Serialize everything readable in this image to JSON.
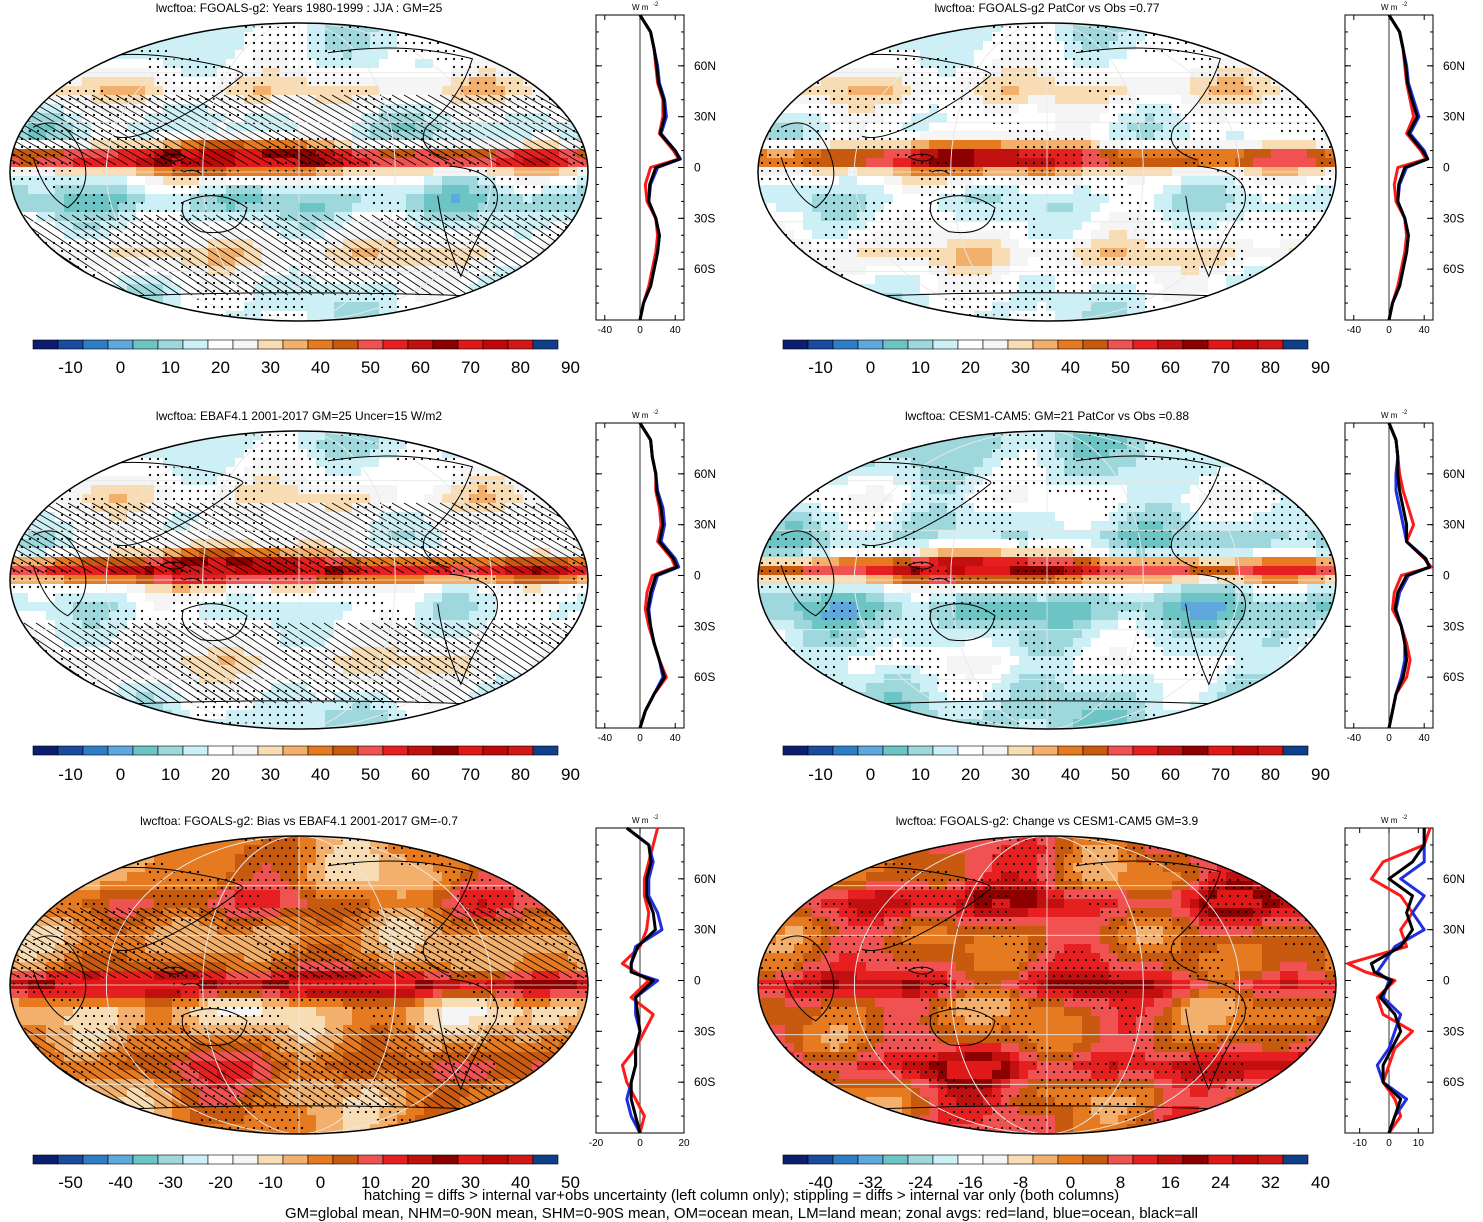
{
  "colors": {
    "full": [
      "#0b1f6e",
      "#1b4a9e",
      "#2f7dc4",
      "#5ea8dd",
      "#6cc4c4",
      "#9fd8dc",
      "#ccf0f5",
      "#ffffff",
      "#f5f5f5",
      "#f8dcb4",
      "#f3b06c",
      "#e57a21",
      "#c85a10",
      "#f05252",
      "#e62020",
      "#c11010",
      "#8c0000",
      "#e01818",
      "#c00808",
      "#d01818",
      "#0f3f8a"
    ],
    "low_hi": [
      "#e6f6fb",
      "#bde8f0",
      "#ffffff",
      "#f6f6f6"
    ]
  },
  "chart_data": [
    {
      "type": "heatmap",
      "title": "lwcftoa: FGOALS-g2: Years 1980-1999 : JJA : GM=25",
      "colorbar_ticks": [
        "-10",
        "0",
        "10",
        "20",
        "30",
        "40",
        "50",
        "60",
        "70",
        "80",
        "90"
      ],
      "vmin": -15,
      "vmax": 95,
      "field": {
        "base": 22,
        "itcz": 40,
        "itcz_lat": 8,
        "wpw": 30,
        "sh_trough": -10,
        "storm": 12,
        "pole": 20,
        "land_s": 0
      },
      "hatching": true,
      "stippling": true,
      "zonal_profile": {
        "lat": [
          -90,
          -80,
          -70,
          -60,
          -50,
          -40,
          -30,
          -20,
          -10,
          0,
          5,
          10,
          20,
          30,
          40,
          50,
          60,
          70,
          80,
          90
        ],
        "land": [
          0,
          4,
          10,
          14,
          18,
          20,
          18,
          8,
          6,
          12,
          44,
          38,
          22,
          26,
          26,
          20,
          18,
          16,
          12,
          0
        ],
        "ocean": [
          0,
          4,
          12,
          16,
          20,
          22,
          18,
          10,
          12,
          20,
          46,
          40,
          24,
          30,
          28,
          22,
          20,
          16,
          12,
          0
        ],
        "all": [
          0,
          4,
          12,
          16,
          20,
          22,
          18,
          10,
          11,
          18,
          45,
          40,
          23,
          28,
          27,
          21,
          19,
          16,
          12,
          0
        ],
        "xlim": [
          -50,
          50
        ],
        "xticks": [
          "-40",
          "0",
          "40"
        ]
      }
    },
    {
      "type": "heatmap",
      "title": "lwcftoa: FGOALS-g2 PatCor vs Obs =0.77",
      "colorbar_ticks": [
        "-10",
        "0",
        "10",
        "20",
        "30",
        "40",
        "50",
        "60",
        "70",
        "80",
        "90"
      ],
      "vmin": -15,
      "vmax": 95,
      "field": {
        "base": 24,
        "itcz": 30,
        "itcz_lat": 8,
        "wpw": 25,
        "sh_trough": -6,
        "storm": 10,
        "pole": 20,
        "land_s": 0
      },
      "hatching": false,
      "stippling": true,
      "zonal_profile": {
        "lat": [
          -90,
          -80,
          -70,
          -60,
          -50,
          -40,
          -30,
          -20,
          -10,
          0,
          5,
          10,
          20,
          30,
          40,
          50,
          60,
          70,
          80,
          90
        ],
        "land": [
          0,
          4,
          10,
          14,
          18,
          20,
          18,
          8,
          6,
          10,
          42,
          36,
          20,
          28,
          24,
          20,
          18,
          16,
          12,
          0
        ],
        "ocean": [
          0,
          4,
          12,
          16,
          20,
          22,
          18,
          10,
          12,
          20,
          44,
          40,
          24,
          34,
          28,
          22,
          20,
          16,
          12,
          0
        ],
        "all": [
          0,
          4,
          12,
          16,
          20,
          22,
          18,
          10,
          11,
          18,
          44,
          38,
          22,
          32,
          26,
          21,
          19,
          16,
          12,
          0
        ],
        "xlim": [
          -50,
          50
        ],
        "xticks": [
          "-40",
          "0",
          "40"
        ]
      }
    },
    {
      "type": "heatmap",
      "title": "lwcftoa: EBAF4.1 2001-2017 GM=25 Uncer=15 W/m2",
      "colorbar_ticks": [
        "-10",
        "0",
        "10",
        "20",
        "30",
        "40",
        "50",
        "60",
        "70",
        "80",
        "90"
      ],
      "vmin": -15,
      "vmax": 95,
      "field": {
        "base": 24,
        "itcz": 38,
        "itcz_lat": 6,
        "wpw": 32,
        "sh_trough": -4,
        "storm": 8,
        "pole": 18,
        "land_s": 0
      },
      "hatching": true,
      "stippling": true,
      "zonal_profile": {
        "lat": [
          -90,
          -80,
          -70,
          -60,
          -50,
          -40,
          -30,
          -20,
          -10,
          0,
          5,
          10,
          20,
          30,
          40,
          50,
          60,
          70,
          80,
          90
        ],
        "land": [
          0,
          6,
          16,
          30,
          22,
          16,
          10,
          6,
          8,
          14,
          40,
          36,
          20,
          24,
          22,
          18,
          18,
          14,
          12,
          0
        ],
        "ocean": [
          0,
          6,
          16,
          26,
          22,
          16,
          12,
          10,
          14,
          20,
          44,
          40,
          24,
          28,
          26,
          20,
          18,
          14,
          12,
          0
        ],
        "all": [
          0,
          6,
          16,
          28,
          22,
          16,
          12,
          9,
          12,
          18,
          42,
          38,
          22,
          26,
          24,
          19,
          18,
          14,
          12,
          0
        ],
        "xlim": [
          -50,
          50
        ],
        "xticks": [
          "-40",
          "0",
          "40"
        ]
      }
    },
    {
      "type": "heatmap",
      "title": "lwcftoa: CESM1-CAM5: GM=21 PatCor vs Obs =0.88",
      "colorbar_ticks": [
        "-10",
        "0",
        "10",
        "20",
        "30",
        "40",
        "50",
        "60",
        "70",
        "80",
        "90"
      ],
      "vmin": -15,
      "vmax": 95,
      "field": {
        "base": 18,
        "itcz": 38,
        "itcz_lat": 6,
        "wpw": 30,
        "sh_trough": -8,
        "storm": 6,
        "pole": 14,
        "land_s": 0
      },
      "hatching": false,
      "stippling": true,
      "zonal_profile": {
        "lat": [
          -90,
          -80,
          -70,
          -60,
          -50,
          -40,
          -30,
          -20,
          -10,
          0,
          5,
          10,
          20,
          30,
          40,
          50,
          60,
          70,
          80,
          90
        ],
        "land": [
          0,
          4,
          8,
          20,
          24,
          20,
          14,
          4,
          6,
          14,
          48,
          40,
          20,
          28,
          22,
          16,
          12,
          10,
          8,
          0
        ],
        "ocean": [
          0,
          4,
          8,
          14,
          18,
          18,
          14,
          8,
          12,
          22,
          46,
          42,
          20,
          16,
          12,
          8,
          8,
          10,
          8,
          0
        ],
        "all": [
          0,
          4,
          8,
          16,
          20,
          18,
          14,
          7,
          10,
          20,
          46,
          41,
          20,
          20,
          16,
          12,
          10,
          10,
          8,
          0
        ],
        "xlim": [
          -50,
          50
        ],
        "xticks": [
          "-40",
          "0",
          "40"
        ]
      }
    },
    {
      "type": "heatmap",
      "title": "lwcftoa: FGOALS-g2: Bias vs EBAF4.1 2001-2017 GM=-0.7",
      "colorbar_ticks": [
        "-50",
        "-40",
        "-30",
        "-20",
        "-10",
        "0",
        "10",
        "20",
        "30",
        "40",
        "50"
      ],
      "vmin": -55,
      "vmax": 55,
      "field": {
        "base": 3,
        "itcz": 28,
        "itcz_lat": 0,
        "wpw": 12,
        "sh_trough": -6,
        "storm": 10,
        "pole": 4,
        "land_s": 6
      },
      "hatching": true,
      "stippling": true,
      "zonal_profile": {
        "lat": [
          -90,
          -80,
          -70,
          -60,
          -50,
          -40,
          -30,
          -20,
          -10,
          0,
          5,
          10,
          20,
          30,
          40,
          50,
          60,
          70,
          80,
          90
        ],
        "land": [
          0,
          2,
          -2,
          -6,
          -8,
          -2,
          2,
          6,
          -4,
          4,
          -2,
          -8,
          0,
          3,
          4,
          2,
          2,
          4,
          6,
          8
        ],
        "ocean": [
          0,
          -4,
          -6,
          -4,
          -2,
          -2,
          0,
          -2,
          -2,
          8,
          -4,
          -4,
          -2,
          10,
          8,
          4,
          4,
          6,
          4,
          -6
        ],
        "all": [
          0,
          -2,
          -4,
          -4,
          -2,
          -2,
          0,
          -1,
          -2,
          6,
          -4,
          -4,
          -1,
          7,
          6,
          3,
          3,
          5,
          4,
          -6
        ],
        "xlim": [
          -20,
          20
        ],
        "xticks": [
          "-20",
          "0",
          "20"
        ]
      }
    },
    {
      "type": "heatmap",
      "title": "lwcftoa: FGOALS-g2: Change vs CESM1-CAM5 GM=3.9",
      "colorbar_ticks": [
        "-40",
        "-32",
        "-24",
        "-16",
        "-8",
        "0",
        "8",
        "16",
        "24",
        "32",
        "40"
      ],
      "vmin": -44,
      "vmax": 44,
      "field": {
        "base": 8,
        "itcz": 10,
        "itcz_lat": 0,
        "wpw": 6,
        "sh_trough": -2,
        "storm": 12,
        "pole": 10,
        "land_s": 6
      },
      "hatching": false,
      "stippling": true,
      "zonal_profile": {
        "lat": [
          -90,
          -80,
          -70,
          -60,
          -50,
          -40,
          -30,
          -20,
          -10,
          0,
          5,
          10,
          20,
          30,
          40,
          50,
          60,
          70,
          80,
          90
        ],
        "land": [
          0,
          4,
          2,
          -2,
          0,
          2,
          8,
          -2,
          -4,
          2,
          -8,
          -14,
          6,
          4,
          8,
          4,
          -6,
          -2,
          12,
          14
        ],
        "ocean": [
          0,
          2,
          6,
          -2,
          -4,
          0,
          2,
          4,
          -2,
          0,
          -4,
          -2,
          2,
          12,
          8,
          12,
          4,
          12,
          12,
          12
        ],
        "all": [
          0,
          2,
          4,
          -2,
          -2,
          1,
          4,
          2,
          -3,
          1,
          -5,
          -6,
          4,
          8,
          6,
          8,
          0,
          8,
          12,
          12
        ],
        "xlim": [
          -15,
          15
        ],
        "xticks": [
          "-10",
          "0",
          "10"
        ]
      }
    }
  ],
  "zonal_axis": {
    "unit_label": "W m",
    "unit_exp": "-2",
    "lat_ticks": [
      "60N",
      "30N",
      "0",
      "30S",
      "60S"
    ],
    "lat_values": [
      60,
      30,
      0,
      -30,
      -60
    ]
  },
  "footer": {
    "line1": "hatching = diffs > internal var+obs uncertainty (left column only); stippling = diffs > internal var only (both columns)",
    "line2": "GM=global mean, NHM=0-90N mean, SHM=0-90S mean, OM=ocean mean, LM=land mean; zonal avgs: red=land, blue=ocean, black=all"
  },
  "profile_colors": {
    "land": "#ff1a1a",
    "ocean": "#1f2fe0",
    "all": "#000000"
  }
}
